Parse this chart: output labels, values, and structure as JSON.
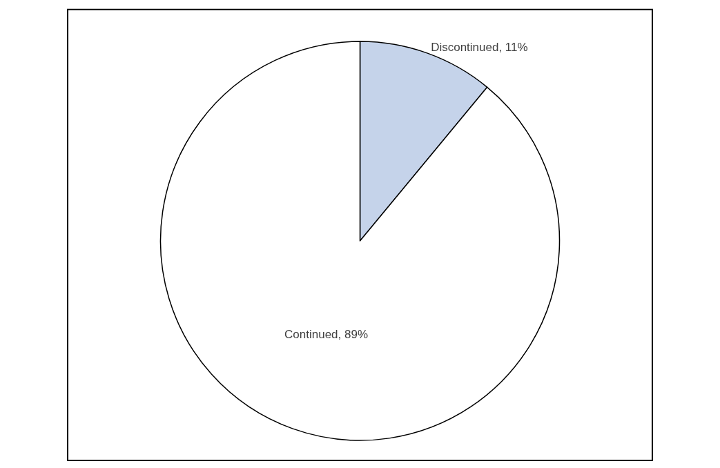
{
  "chart_data": {
    "type": "pie",
    "categories": [
      "Discontinued",
      "Continued"
    ],
    "values": [
      11,
      89
    ],
    "value_labels": [
      "11%",
      "89%"
    ],
    "colors": [
      "#c5d3ea",
      "#ffffff"
    ],
    "legend": false
  }
}
